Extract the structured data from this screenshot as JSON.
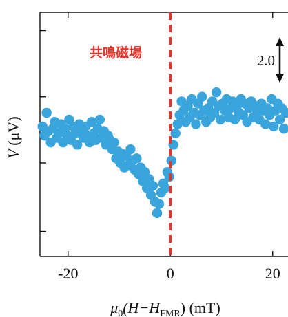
{
  "chart_data": {
    "type": "scatter",
    "title": "",
    "xlabel": {
      "mu": "μ",
      "mu_sub": "0",
      "body": "(H−H",
      "sub": "FMR",
      "tail": ") (mT)"
    },
    "ylabel": {
      "var": "V",
      "unit": " (μV)"
    },
    "xlim": [
      -25.5,
      23.0
    ],
    "ylim": [
      -4.1,
      6.6
    ],
    "x_ticks": [
      -20,
      0,
      20
    ],
    "x_tick_labels": [
      "-20",
      "0",
      "20"
    ],
    "y_ticks": [
      -3.0,
      0.0,
      2.9,
      5.8
    ],
    "grid": false,
    "series": [
      {
        "color": "#3aa5dd",
        "x": [
          -25.0,
          -24.6,
          -24.2,
          -23.8,
          -23.4,
          -23.0,
          -22.6,
          -22.2,
          -21.8,
          -21.4,
          -21.0,
          -20.6,
          -20.2,
          -19.8,
          -19.4,
          -19.0,
          -18.6,
          -18.2,
          -17.8,
          -17.4,
          -17.0,
          -16.6,
          -16.2,
          -15.8,
          -15.4,
          -15.0,
          -14.6,
          -14.2,
          -13.8,
          -13.4,
          -13.0,
          -12.6,
          -12.2,
          -11.8,
          -11.4,
          -11.0,
          -10.6,
          -10.2,
          -9.8,
          -9.4,
          -9.0,
          -8.6,
          -8.2,
          -7.8,
          -7.4,
          -7.0,
          -6.6,
          -6.2,
          -5.8,
          -5.4,
          -5.0,
          -4.6,
          -4.2,
          -3.8,
          -3.4,
          -3.0,
          -2.6,
          -2.2,
          -1.8,
          -1.4,
          -1.0,
          -0.6,
          -0.2,
          0.2,
          0.6,
          1.0,
          1.4,
          1.8,
          2.2,
          2.6,
          3.0,
          3.4,
          3.8,
          4.2,
          4.6,
          5.0,
          5.4,
          5.8,
          6.2,
          6.6,
          7.0,
          7.4,
          7.8,
          8.2,
          8.6,
          9.0,
          9.4,
          9.8,
          10.2,
          10.6,
          11.0,
          11.4,
          11.8,
          12.2,
          12.6,
          13.0,
          13.4,
          13.8,
          14.2,
          14.6,
          15.0,
          15.4,
          15.8,
          16.2,
          16.6,
          17.0,
          17.4,
          17.8,
          18.2,
          18.6,
          19.0,
          19.4,
          19.8,
          20.2,
          20.6,
          21.0,
          21.4,
          21.8,
          22.2,
          22.6
        ],
        "y": [
          1.6,
          1.2,
          2.2,
          1.4,
          0.9,
          1.5,
          1.8,
          1.1,
          1.3,
          1.7,
          0.9,
          1.5,
          1.2,
          1.9,
          1.0,
          1.6,
          1.3,
          0.8,
          1.7,
          1.4,
          1.1,
          1.6,
          1.2,
          0.9,
          1.8,
          1.3,
          1.0,
          1.5,
          1.9,
          1.1,
          1.4,
          0.8,
          1.2,
          1.0,
          0.6,
          0.9,
          0.2,
          0.5,
          0.0,
          0.4,
          -0.2,
          0.3,
          -0.1,
          0.6,
          0.1,
          -0.3,
          0.2,
          -0.5,
          -0.2,
          -0.8,
          -0.4,
          -1.1,
          -0.7,
          -1.4,
          -1.0,
          -1.7,
          -2.2,
          -1.8,
          -1.3,
          -0.9,
          -1.1,
          -0.4,
          -0.6,
          0.1,
          0.8,
          1.3,
          1.7,
          2.1,
          2.7,
          2.3,
          1.8,
          2.5,
          2.0,
          2.8,
          2.2,
          1.7,
          2.6,
          2.1,
          2.9,
          2.3,
          1.8,
          2.4,
          2.0,
          2.7,
          2.2,
          3.1,
          2.5,
          1.9,
          2.6,
          2.3,
          2.8,
          2.0,
          2.4,
          2.7,
          1.9,
          2.5,
          2.2,
          2.8,
          2.1,
          2.6,
          1.8,
          2.4,
          2.7,
          2.0,
          2.5,
          2.2,
          1.9,
          2.6,
          2.3,
          1.7,
          2.4,
          2.1,
          2.8,
          1.6,
          2.3,
          2.6,
          1.9,
          2.4,
          1.5,
          2.2
        ]
      }
    ],
    "annotations": [
      {
        "id": "resonance",
        "text": "共鳴磁場",
        "x": 0.0,
        "style": "dashed-vertical-line",
        "color": "#e8342a"
      },
      {
        "id": "scale_bar",
        "text": "2.0",
        "span": 2.0
      }
    ]
  }
}
